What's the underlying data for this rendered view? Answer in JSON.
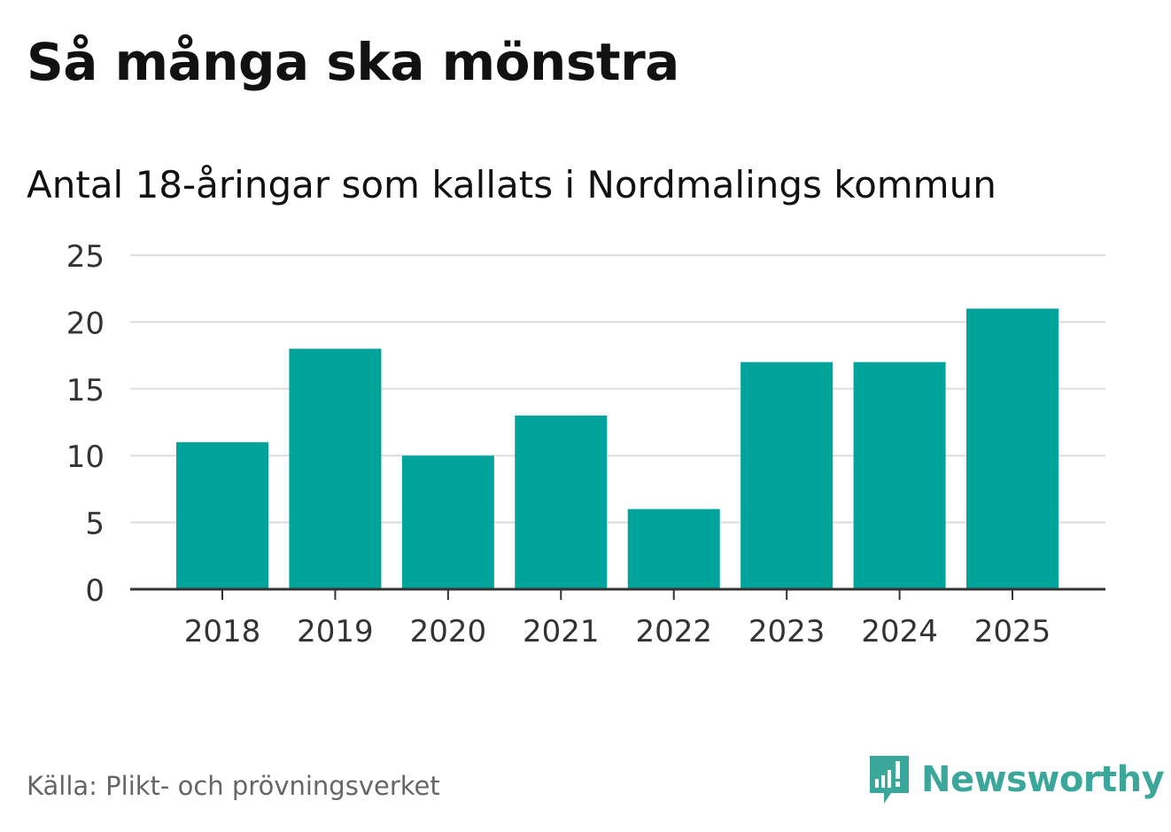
{
  "title": "Så många ska mönstra",
  "subtitle": "Antal 18-åringar som kallats i Nordmalings kommun",
  "source": "Källa: Plikt- och prövningsverket",
  "brand": "Newsworthy",
  "colors": {
    "bar": "#00a49b",
    "grid": "#dddddd",
    "axis": "#333333",
    "brand": "#3aa79a"
  },
  "chart_data": {
    "type": "bar",
    "categories": [
      "2018",
      "2019",
      "2020",
      "2021",
      "2022",
      "2023",
      "2024",
      "2025"
    ],
    "values": [
      11,
      18,
      10,
      13,
      6,
      17,
      17,
      21
    ],
    "title": "Så många ska mönstra",
    "subtitle": "Antal 18-åringar som kallats i Nordmalings kommun",
    "xlabel": "",
    "ylabel": "",
    "ylim": [
      0,
      25
    ],
    "yticks": [
      0,
      5,
      10,
      15,
      20,
      25
    ],
    "grid": true,
    "legend": "none"
  }
}
